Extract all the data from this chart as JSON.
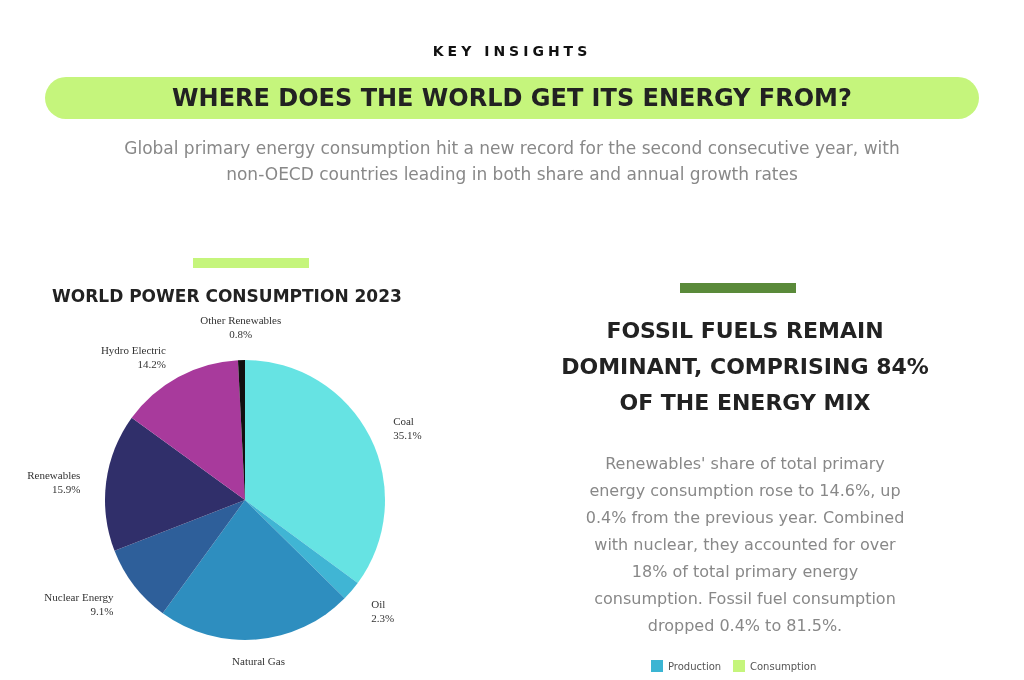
{
  "chart_data": {
    "type": "pie",
    "title": "WHERE DOES THE WORLD GET ITS ENERGY FROM?",
    "subtitle": "Global primary energy consumption hit a new record for the second consecutive year, with non-OECD countries leading in both share and annual growth rates",
    "annotations": [
      "KEY INSIGHTS",
      "WORLD POWER CONSUMPTION 2023",
      "FOSSIL FUELS REMAIN DOMINANT, COMPRISING 84% OF THE ENERGY MIX",
      "Renewables' share of total primary energy consumption rose to 14.6%, up 0.4% from the previous year. Combined with nuclear, they accounted for over 18% of total primary energy consumption. Fossil fuel consumption dropped 0.4% to 81.5%.",
      "Production",
      "Consumption"
    ],
    "categories": [
      "Coal",
      "Oil",
      "Natural Gas",
      "Nuclear Energy",
      "Renewables",
      "Hydro Electric",
      "Other Renewables"
    ],
    "values": [
      35.1,
      2.3,
      22.6,
      9.1,
      15.9,
      14.2,
      0.8
    ],
    "value_labels": [
      "35.1%",
      "2.3%",
      null,
      "9.1%",
      "15.9%",
      "14.2%",
      "0.8%"
    ],
    "colors": [
      "#66e3e3",
      "#40b5d4",
      "#2e8ebf",
      "#2e5f9a",
      "#302f6a",
      "#a83a9c",
      "#111111"
    ]
  }
}
